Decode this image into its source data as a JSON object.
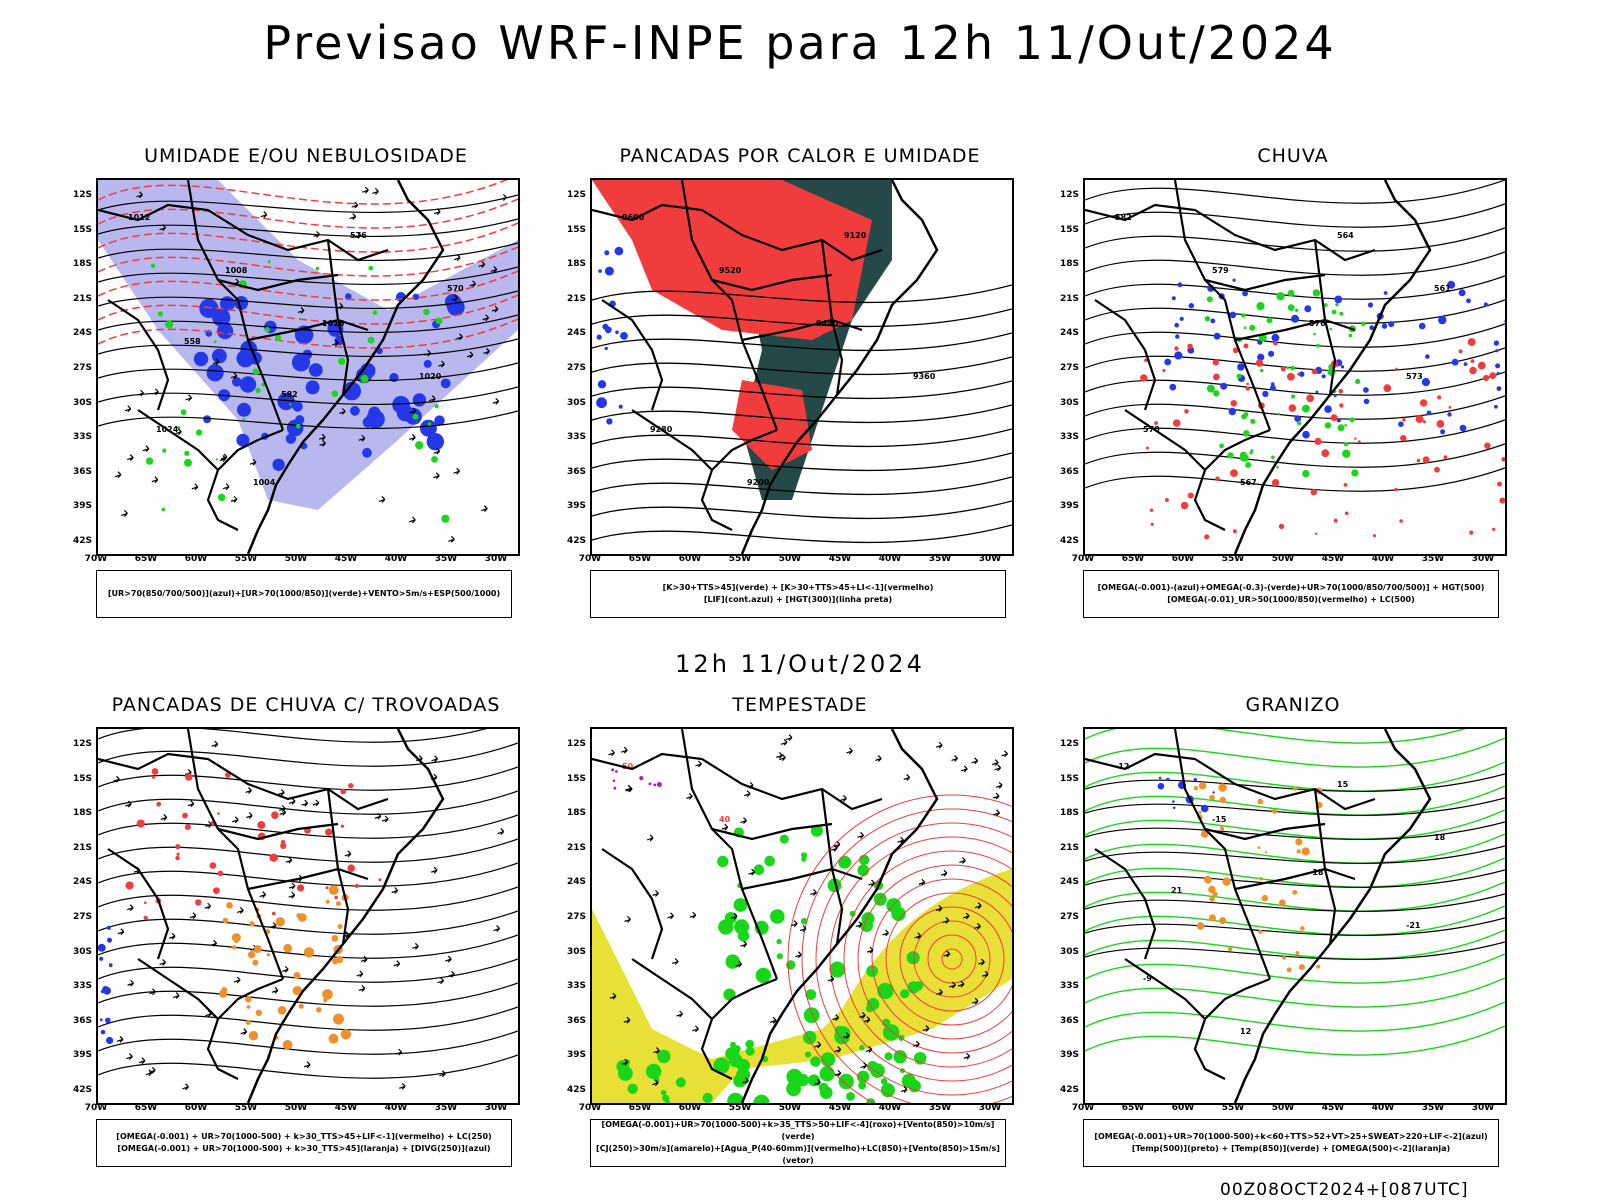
{
  "title": "Previsao WRF-INPE  para 12h 11/Out/2024",
  "mid_title": "12h 11/Out/2024",
  "footer": "00Z08OCT2024+[087UTC]",
  "axes": {
    "lat_labels": [
      "12S",
      "15S",
      "18S",
      "21S",
      "24S",
      "27S",
      "30S",
      "33S",
      "36S",
      "39S",
      "42S"
    ],
    "lon_labels": [
      "70W",
      "65W",
      "60W",
      "55W",
      "50W",
      "45W",
      "40W",
      "35W",
      "30W"
    ]
  },
  "colors": {
    "blue": "#2438e8",
    "lavender": "#b8b8ee",
    "green": "#19d619",
    "red": "#f03c3c",
    "dark_teal": "#254848",
    "orange": "#f0902a",
    "yellow": "#e8e036",
    "purple": "#a020c0"
  },
  "panels": [
    {
      "title": "UMIDADE E/OU NEBULOSIDADE",
      "legend": [
        "[UR>70(850/700/500)](azul)+[UR>70(1000/850)](verde)+VENTO>5m/s+ESP(500/1000)"
      ],
      "contour_labels": [
        "1012",
        "1008",
        "1016",
        "1020",
        "1024",
        "1004",
        "576",
        "570",
        "558",
        "582"
      ]
    },
    {
      "title": "PANCADAS POR CALOR E UMIDADE",
      "legend": [
        "[K>30+TTS>45](verde) + [K>30+TTS>45+LI<-1](vermelho)",
        "[LIF](cont.azul) + [HGT(300)](linha preta)"
      ],
      "contour_labels": [
        "9600",
        "9520",
        "9440",
        "9360",
        "9280",
        "9200",
        "9120"
      ]
    },
    {
      "title": "CHUVA",
      "legend": [
        "[OMEGA(-0.001)-(azul)+OMEGA(-0.3)-(verde)+UR>70(1000/850/700/500)] + HGT(500)",
        "[OMEGA(-0.01)_UR>50(1000/850)(vermelho) + LC(500)"
      ],
      "contour_labels": [
        "582",
        "579",
        "576",
        "573",
        "570",
        "567",
        "564",
        "561"
      ]
    },
    {
      "title": "PANCADAS DE CHUVA C/ TROVOADAS",
      "legend": [
        "[OMEGA(-0.001) + UR>70(1000-500) + k>30_TTS>45+LIF<-1](vermelho) + LC(250)",
        "[OMEGA(-0.001) + UR>70(1000-500) + k>30_TTS>45](laranja) + [DIVG(250)](azul)"
      ],
      "contour_labels": []
    },
    {
      "title": "TEMPESTADE",
      "legend": [
        "[OMEGA(-0.001)+UR>70(1000-500)+k>35_TTS>50+LIF<-4](roxo)+[Vento(850)>10m/s](verde)",
        "[CJ(250)>30m/s](amarelo)+[Agua_P(40-60mm)](vermelho)+LC(850)+[Vento(850)>15m/s](vetor)"
      ],
      "contour_labels": [
        "50",
        "40"
      ]
    },
    {
      "title": "GRANIZO",
      "legend": [
        "[OMEGA(-0.001)+UR>70(1000-500)+k<60+TTS>52+VT>25+SWEAT>220+LIF<-2](azul)",
        "[Temp(500)](preto) + [Temp(850)](verde) + [OMEGA(500)<-2](laranja)"
      ],
      "contour_labels": [
        "-12",
        "-15",
        "-18",
        "-21",
        "-9",
        "12",
        "15",
        "18",
        "21"
      ]
    }
  ]
}
